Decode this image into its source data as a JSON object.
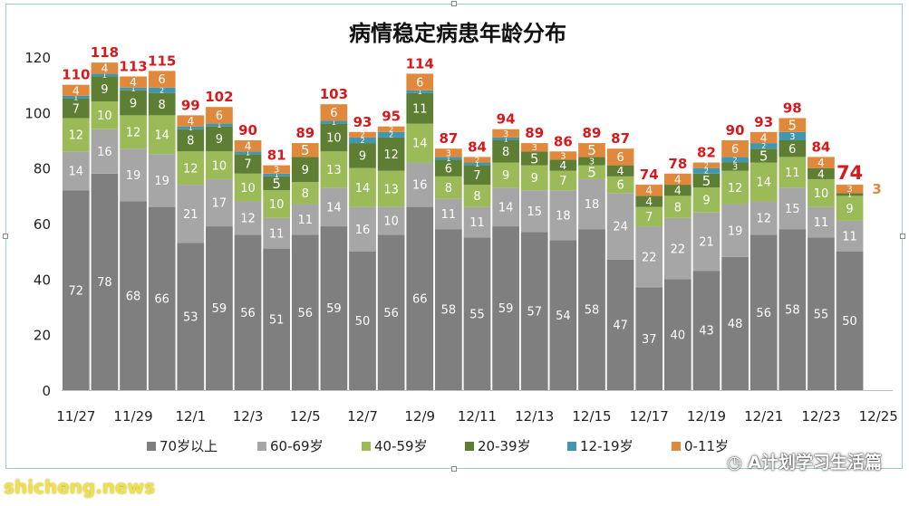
{
  "chart_data": {
    "type": "bar",
    "stacked": true,
    "title": "病情稳定病患年龄分布",
    "categories": [
      "11/27",
      "11/28",
      "11/29",
      "11/30",
      "12/1",
      "12/2",
      "12/3",
      "12/4",
      "12/5",
      "12/6",
      "12/7",
      "12/8",
      "12/9",
      "12/10",
      "12/11",
      "12/12",
      "12/13",
      "12/14",
      "12/15",
      "12/16",
      "12/17",
      "12/18",
      "12/19",
      "12/20",
      "12/21",
      "12/22",
      "12/23",
      "12/24",
      "12/25"
    ],
    "x_tick_labels": [
      "11/27",
      "",
      "11/29",
      "",
      "12/1",
      "",
      "12/3",
      "",
      "12/5",
      "",
      "12/7",
      "",
      "12/9",
      "",
      "12/11",
      "",
      "12/13",
      "",
      "12/15",
      "",
      "12/17",
      "",
      "12/19",
      "",
      "12/21",
      "",
      "12/23",
      "",
      "12/25"
    ],
    "ylim": [
      0,
      120
    ],
    "yticks": [
      0,
      20,
      40,
      60,
      80,
      100,
      120
    ],
    "grid": false,
    "legend_position": "bottom",
    "series": [
      {
        "name": "70岁以上",
        "color": "#7f7f7f",
        "label_color": "#ffffff",
        "values": [
          72,
          78,
          68,
          66,
          53,
          59,
          56,
          51,
          56,
          59,
          50,
          56,
          66,
          58,
          55,
          59,
          57,
          54,
          58,
          47,
          37,
          40,
          43,
          48,
          56,
          58,
          55,
          50,
          null
        ]
      },
      {
        "name": "60-69岁",
        "color": "#a6a6a6",
        "label_color": "#ffffff",
        "values": [
          14,
          16,
          19,
          19,
          21,
          17,
          12,
          11,
          11,
          14,
          16,
          10,
          16,
          11,
          11,
          14,
          15,
          18,
          18,
          24,
          22,
          22,
          21,
          19,
          12,
          15,
          11,
          11,
          null
        ]
      },
      {
        "name": "40-59岁",
        "color": "#9bbb59",
        "label_color": "#ffffff",
        "values": [
          12,
          10,
          12,
          14,
          12,
          10,
          10,
          10,
          8,
          13,
          14,
          13,
          14,
          8,
          8,
          9,
          9,
          7,
          5,
          6,
          7,
          8,
          9,
          12,
          14,
          11,
          10,
          9,
          null
        ]
      },
      {
        "name": "20-39岁",
        "color": "#5e7f33",
        "label_color": "#ffffff",
        "values": [
          7,
          9,
          9,
          8,
          8,
          9,
          7,
          5,
          9,
          10,
          9,
          12,
          11,
          6,
          7,
          8,
          5,
          4,
          3,
          4,
          4,
          4,
          5,
          3,
          5,
          6,
          4,
          1,
          null
        ]
      },
      {
        "name": "12-19岁",
        "color": "#4197ae",
        "label_color": "#ffffff",
        "values": [
          1,
          1,
          1,
          2,
          1,
          1,
          1,
          1,
          0,
          1,
          2,
          2,
          1,
          1,
          1,
          1,
          0,
          0,
          0,
          0,
          0,
          0,
          2,
          2,
          2,
          3,
          0,
          0,
          null
        ]
      },
      {
        "name": "0-11岁",
        "color": "#e0893c",
        "label_color": "#ffffff",
        "values": [
          4,
          4,
          4,
          6,
          4,
          6,
          4,
          3,
          5,
          6,
          2,
          2,
          6,
          3,
          2,
          3,
          3,
          3,
          5,
          6,
          4,
          4,
          2,
          6,
          4,
          5,
          4,
          3,
          null
        ]
      }
    ],
    "totals": [
      110,
      118,
      113,
      115,
      99,
      102,
      90,
      81,
      89,
      103,
      93,
      95,
      114,
      87,
      84,
      94,
      89,
      86,
      89,
      87,
      74,
      78,
      82,
      90,
      93,
      98,
      84,
      74,
      null
    ],
    "last_orange_label": "3",
    "label_text_overrides": [
      [
        null,
        null,
        null,
        null,
        null,
        null
      ],
      [
        null,
        null,
        null,
        null,
        null,
        null
      ],
      [
        null,
        null,
        null,
        null,
        null,
        null
      ],
      [
        null,
        null,
        null,
        null,
        null,
        null
      ],
      [
        null,
        null,
        null,
        null,
        null,
        null
      ],
      [
        null,
        null,
        null,
        null,
        null,
        null
      ],
      [
        null,
        null,
        null,
        null,
        null,
        null
      ],
      [
        null,
        null,
        null,
        null,
        null,
        null
      ],
      [
        null,
        null,
        null,
        null,
        null,
        null
      ],
      [
        null,
        null,
        null,
        null,
        null,
        null
      ],
      [
        null,
        null,
        null,
        null,
        null,
        null
      ],
      [
        null,
        null,
        null,
        null,
        null,
        null
      ],
      [
        null,
        null,
        null,
        null,
        null,
        null
      ],
      [
        null,
        null,
        null,
        null,
        null,
        null
      ],
      [
        null,
        null,
        null,
        null,
        null,
        null
      ],
      [
        null,
        null,
        null,
        null,
        null,
        null
      ],
      [
        null,
        null,
        null,
        null,
        null,
        null
      ],
      [
        null,
        null,
        null,
        null,
        null,
        null
      ],
      [
        null,
        null,
        null,
        null,
        null,
        null
      ],
      [
        null,
        null,
        null,
        null,
        null,
        null
      ],
      [
        null,
        null,
        null,
        null,
        null,
        null
      ],
      [
        null,
        null,
        null,
        null,
        null,
        null
      ],
      [
        null,
        null,
        null,
        null,
        null,
        null
      ],
      [
        null,
        null,
        null,
        null,
        null,
        null
      ],
      [
        null,
        null,
        null,
        null,
        null,
        null
      ],
      [
        null,
        null,
        null,
        null,
        null,
        null
      ],
      [
        null,
        null,
        null,
        null,
        null,
        null
      ],
      [
        null,
        null,
        null,
        null,
        null,
        null
      ],
      [
        null,
        null,
        null,
        null,
        null,
        null
      ]
    ]
  },
  "watermark": {
    "left": "shicheng.news",
    "right": "A计划学习生活篇"
  }
}
